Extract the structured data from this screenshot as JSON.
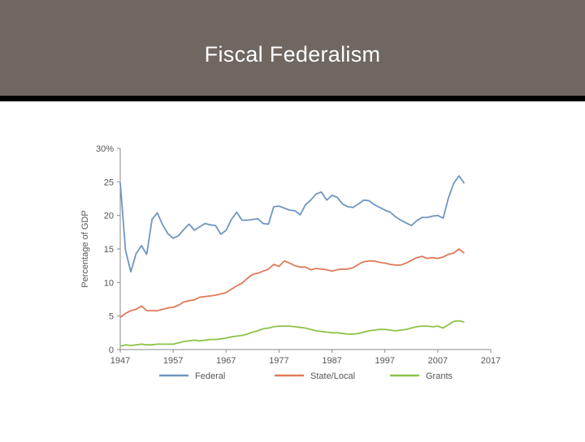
{
  "slide": {
    "title": "Fiscal Federalism"
  },
  "colors": {
    "title_bar": "#6f6760",
    "federal": "#6e96bf",
    "state_local": "#e07a5a",
    "grants": "#8cc34a",
    "axis": "#888888",
    "label": "#555555"
  },
  "chart_data": {
    "type": "line",
    "title": "",
    "xlabel": "",
    "ylabel": "Percentage of GDP",
    "xlim": [
      1947,
      2017
    ],
    "ylim": [
      0,
      30
    ],
    "x_ticks": [
      1947,
      1957,
      1967,
      1977,
      1987,
      1997,
      2007,
      2017
    ],
    "x_tick_labels": [
      "1947",
      "1957",
      "1967",
      "1977",
      "1987",
      "1997",
      "2007",
      "2017"
    ],
    "y_ticks": [
      0,
      5,
      10,
      15,
      20,
      25,
      30
    ],
    "y_tick_labels": [
      "0",
      "5",
      "10",
      "15",
      "20",
      "25",
      "30%"
    ],
    "legend_position": "bottom",
    "series": [
      {
        "name": "Federal",
        "color_key": "federal",
        "x": [
          1947,
          1948,
          1949,
          1950,
          1951,
          1952,
          1953,
          1954,
          1955,
          1956,
          1957,
          1958,
          1959,
          1960,
          1961,
          1962,
          1963,
          1964,
          1965,
          1966,
          1967,
          1968,
          1969,
          1970,
          1971,
          1972,
          1973,
          1974,
          1975,
          1976,
          1977,
          1978,
          1979,
          1980,
          1981,
          1982,
          1983,
          1984,
          1985,
          1986,
          1987,
          1988,
          1989,
          1990,
          1991,
          1992,
          1993,
          1994,
          1995,
          1996,
          1997,
          1998,
          1999,
          2000,
          2001,
          2002,
          2003,
          2004,
          2005,
          2006,
          2007,
          2008,
          2009,
          2010,
          2011,
          2012
        ],
        "values": [
          24.9,
          14.8,
          11.6,
          14.3,
          15.5,
          14.2,
          19.4,
          20.4,
          18.6,
          17.3,
          16.6,
          17.0,
          17.9,
          18.7,
          17.8,
          18.3,
          18.8,
          18.6,
          18.5,
          17.2,
          17.8,
          19.4,
          20.5,
          19.3,
          19.3,
          19.4,
          19.5,
          18.8,
          18.7,
          21.3,
          21.4,
          21.1,
          20.8,
          20.7,
          20.1,
          21.6,
          22.3,
          23.2,
          23.5,
          22.3,
          23.0,
          22.7,
          21.7,
          21.3,
          21.2,
          21.7,
          22.3,
          22.2,
          21.6,
          21.2,
          20.8,
          20.5,
          19.8,
          19.3,
          18.9,
          18.5,
          19.2,
          19.7,
          19.7,
          19.9,
          20.0,
          19.6,
          22.6,
          24.8,
          25.9,
          24.8
        ]
      },
      {
        "name": "State/Local",
        "color_key": "state_local",
        "x": [
          1947,
          1948,
          1949,
          1950,
          1951,
          1952,
          1953,
          1954,
          1955,
          1956,
          1957,
          1958,
          1959,
          1960,
          1961,
          1962,
          1963,
          1964,
          1965,
          1966,
          1967,
          1968,
          1969,
          1970,
          1971,
          1972,
          1973,
          1974,
          1975,
          1976,
          1977,
          1978,
          1979,
          1980,
          1981,
          1982,
          1983,
          1984,
          1985,
          1986,
          1987,
          1988,
          1989,
          1990,
          1991,
          1992,
          1993,
          1994,
          1995,
          1996,
          1997,
          1998,
          1999,
          2000,
          2001,
          2002,
          2003,
          2004,
          2005,
          2006,
          2007,
          2008,
          2009,
          2010,
          2011,
          2012
        ],
        "values": [
          4.8,
          5.4,
          5.8,
          6.0,
          6.5,
          5.8,
          5.8,
          5.8,
          6.0,
          6.2,
          6.3,
          6.6,
          7.1,
          7.3,
          7.4,
          7.8,
          7.9,
          8.0,
          8.1,
          8.3,
          8.5,
          9.0,
          9.5,
          9.9,
          10.6,
          11.2,
          11.4,
          11.7,
          12.0,
          12.7,
          12.4,
          13.2,
          12.9,
          12.5,
          12.3,
          12.3,
          11.9,
          12.1,
          12.0,
          11.9,
          11.7,
          11.9,
          12.0,
          12.0,
          12.2,
          12.7,
          13.1,
          13.2,
          13.2,
          13.0,
          12.9,
          12.7,
          12.6,
          12.6,
          12.9,
          13.3,
          13.7,
          13.9,
          13.6,
          13.7,
          13.6,
          13.8,
          14.2,
          14.4,
          15.0,
          14.4
        ]
      },
      {
        "name": "Grants",
        "color_key": "grants",
        "x": [
          1947,
          1948,
          1949,
          1950,
          1951,
          1952,
          1953,
          1954,
          1955,
          1956,
          1957,
          1958,
          1959,
          1960,
          1961,
          1962,
          1963,
          1964,
          1965,
          1966,
          1967,
          1968,
          1969,
          1970,
          1971,
          1972,
          1973,
          1974,
          1975,
          1976,
          1977,
          1978,
          1979,
          1980,
          1981,
          1982,
          1983,
          1984,
          1985,
          1986,
          1987,
          1988,
          1989,
          1990,
          1991,
          1992,
          1993,
          1994,
          1995,
          1996,
          1997,
          1998,
          1999,
          2000,
          2001,
          2002,
          2003,
          2004,
          2005,
          2006,
          2007,
          2008,
          2009,
          2010,
          2011,
          2012
        ],
        "values": [
          0.5,
          0.7,
          0.6,
          0.7,
          0.8,
          0.7,
          0.7,
          0.8,
          0.8,
          0.8,
          0.8,
          1.0,
          1.2,
          1.3,
          1.4,
          1.3,
          1.4,
          1.5,
          1.5,
          1.6,
          1.7,
          1.9,
          2.0,
          2.1,
          2.3,
          2.6,
          2.8,
          3.1,
          3.2,
          3.4,
          3.5,
          3.5,
          3.5,
          3.4,
          3.3,
          3.2,
          3.0,
          2.8,
          2.7,
          2.6,
          2.5,
          2.5,
          2.4,
          2.3,
          2.3,
          2.4,
          2.6,
          2.8,
          2.9,
          3.0,
          3.0,
          2.9,
          2.8,
          2.9,
          3.0,
          3.2,
          3.4,
          3.5,
          3.5,
          3.4,
          3.5,
          3.2,
          3.7,
          4.2,
          4.3,
          4.1
        ]
      }
    ]
  }
}
